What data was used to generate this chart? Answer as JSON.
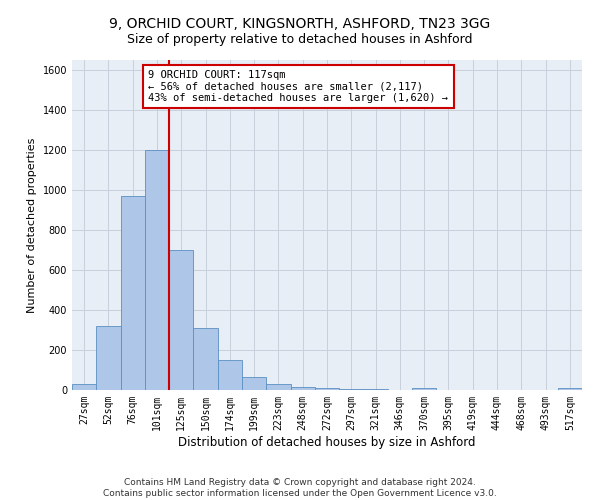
{
  "title1": "9, ORCHID COURT, KINGSNORTH, ASHFORD, TN23 3GG",
  "title2": "Size of property relative to detached houses in Ashford",
  "xlabel": "Distribution of detached houses by size in Ashford",
  "ylabel": "Number of detached properties",
  "categories": [
    "27sqm",
    "52sqm",
    "76sqm",
    "101sqm",
    "125sqm",
    "150sqm",
    "174sqm",
    "199sqm",
    "223sqm",
    "248sqm",
    "272sqm",
    "297sqm",
    "321sqm",
    "346sqm",
    "370sqm",
    "395sqm",
    "419sqm",
    "444sqm",
    "468sqm",
    "493sqm",
    "517sqm"
  ],
  "values": [
    30,
    320,
    970,
    1200,
    700,
    310,
    150,
    65,
    30,
    15,
    8,
    5,
    3,
    2,
    10,
    2,
    2,
    2,
    2,
    2,
    10
  ],
  "bar_color": "#aec6e8",
  "bar_edge_color": "#5a8fc2",
  "vline_color": "#cc0000",
  "annotation_text": "9 ORCHID COURT: 117sqm\n← 56% of detached houses are smaller (2,117)\n43% of semi-detached houses are larger (1,620) →",
  "annotation_box_color": "#ffffff",
  "annotation_box_edge": "#cc0000",
  "ylim": [
    0,
    1650
  ],
  "yticks": [
    0,
    200,
    400,
    600,
    800,
    1000,
    1200,
    1400,
    1600
  ],
  "grid_color": "#c8d0dc",
  "bg_color": "#e8eef5",
  "footer": "Contains HM Land Registry data © Crown copyright and database right 2024.\nContains public sector information licensed under the Open Government Licence v3.0.",
  "title1_fontsize": 10,
  "title2_fontsize": 9,
  "xlabel_fontsize": 8.5,
  "ylabel_fontsize": 8,
  "tick_fontsize": 7,
  "annotation_fontsize": 7.5,
  "footer_fontsize": 6.5
}
